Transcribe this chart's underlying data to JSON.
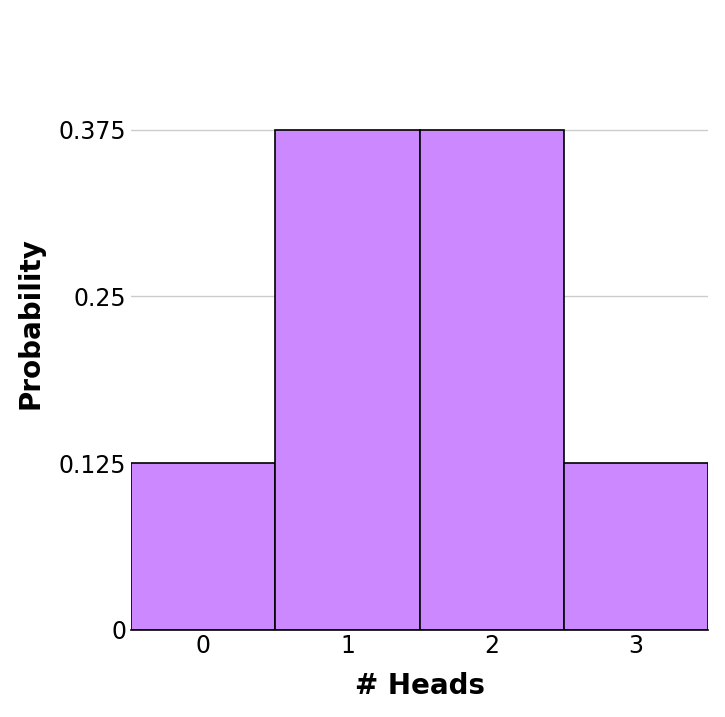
{
  "categories": [
    0,
    1,
    2,
    3
  ],
  "values": [
    0.125,
    0.375,
    0.375,
    0.125
  ],
  "bar_color": "#CC88FF",
  "bar_edgecolor": "#000000",
  "xlabel": "# Heads",
  "ylabel": "Probability",
  "ylim": [
    0,
    0.46
  ],
  "yticks": [
    0,
    0.125,
    0.25,
    0.375
  ],
  "ytick_labels": [
    "0",
    "0.125",
    "0.25",
    "0.375"
  ],
  "xtick_labels": [
    "0",
    "1",
    "2",
    "3"
  ],
  "xlabel_fontsize": 20,
  "ylabel_fontsize": 20,
  "tick_fontsize": 17,
  "bar_width": 1.0,
  "grid_color": "#cccccc",
  "grid_linewidth": 1.0,
  "background_color": "#ffffff",
  "spine_color": "#000000",
  "xlim": [
    -0.5,
    3.5
  ]
}
